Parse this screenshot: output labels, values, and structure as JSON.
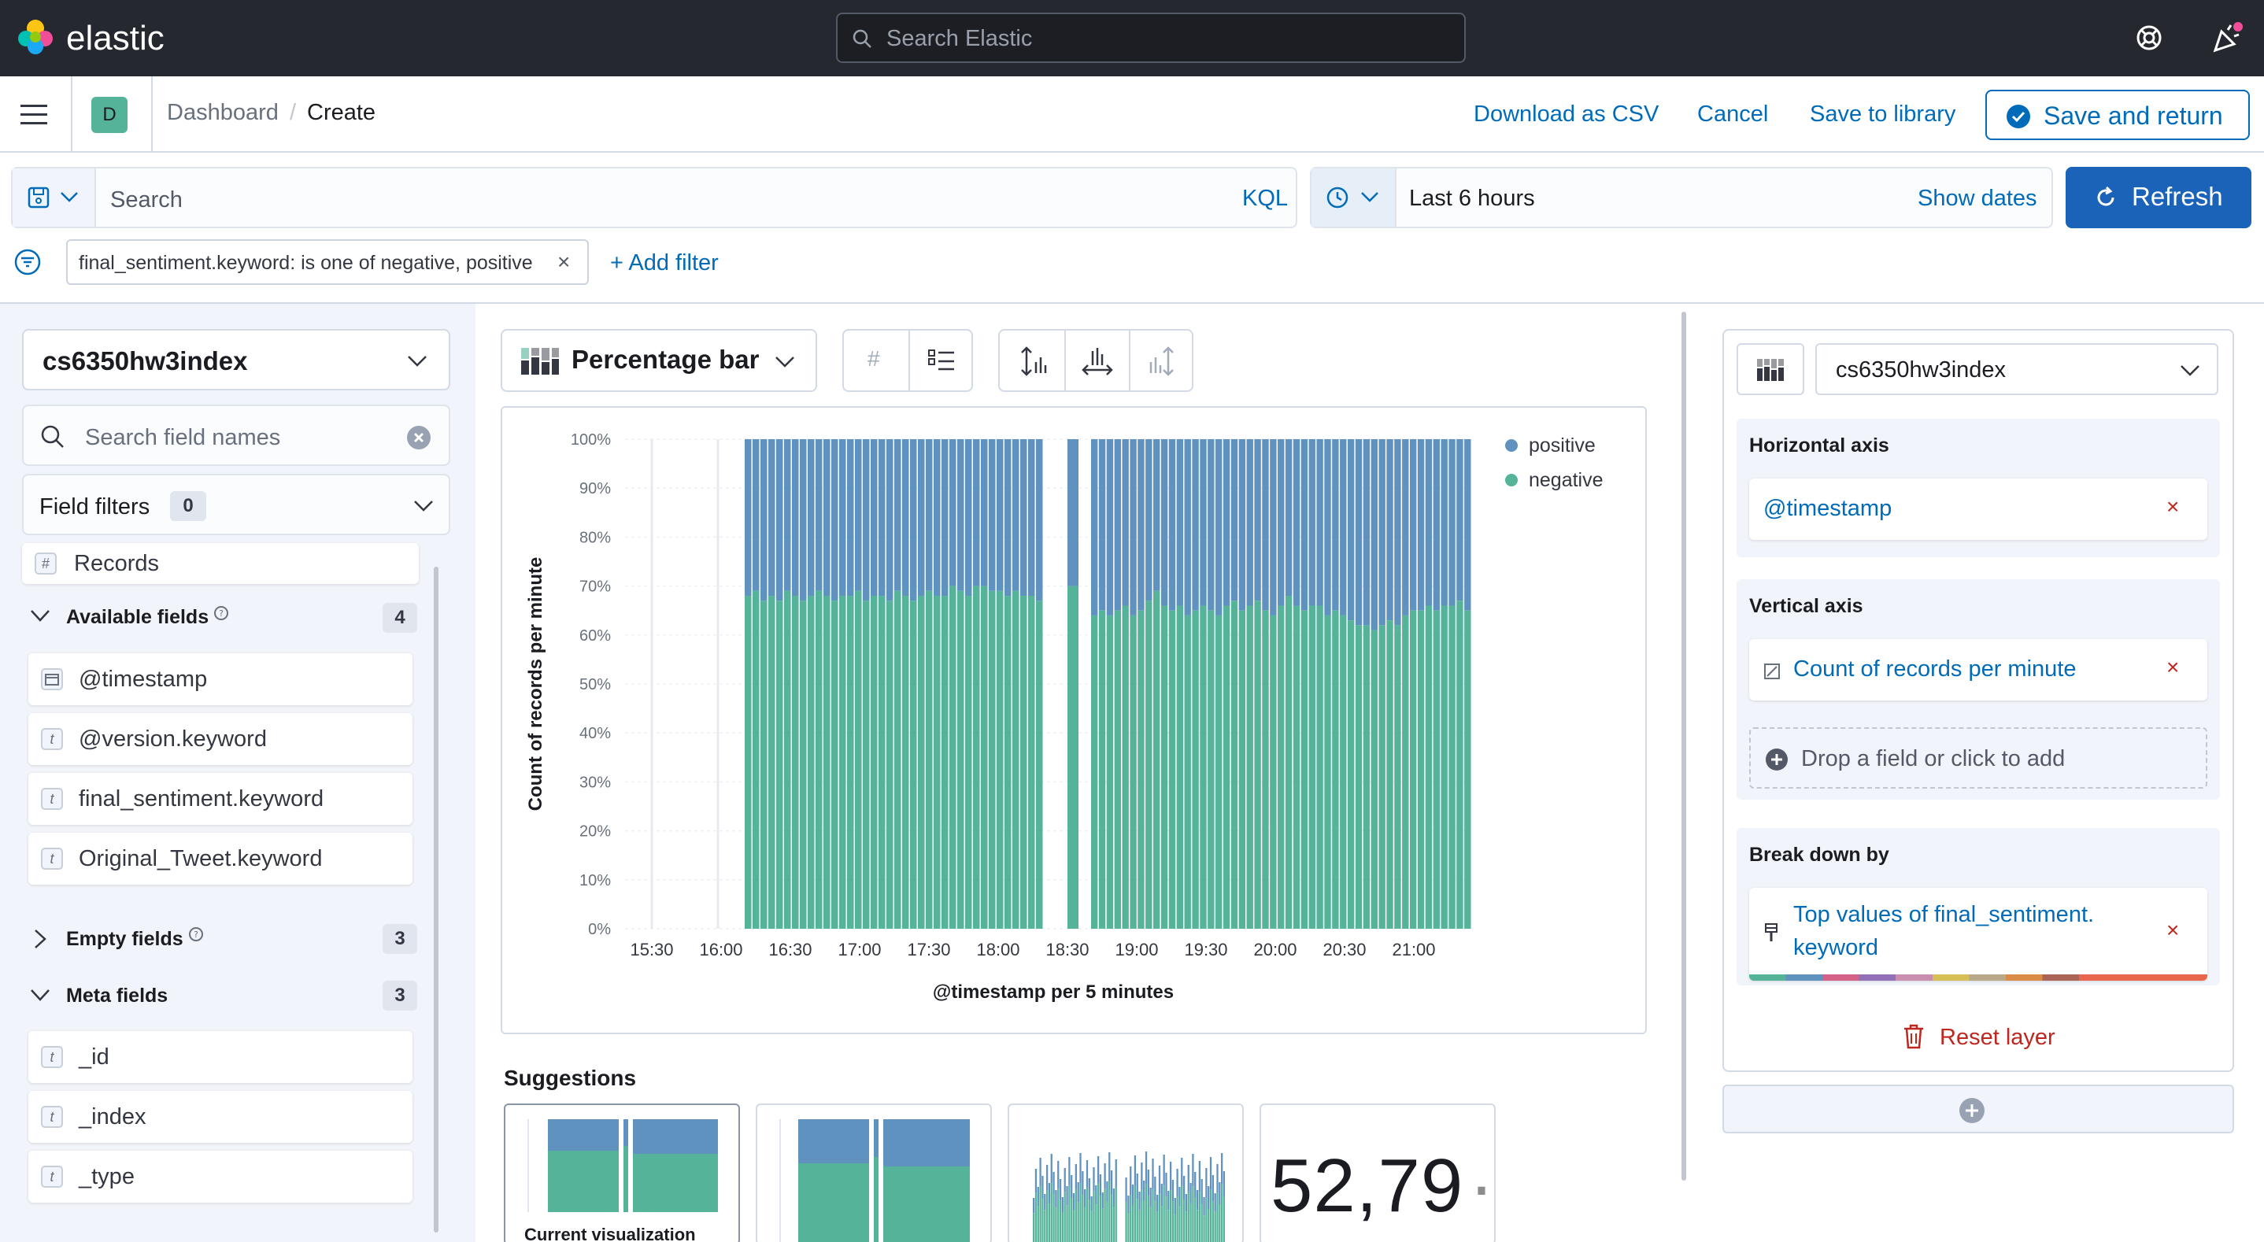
{
  "header": {
    "brand": "elastic",
    "search_placeholder": "Search Elastic"
  },
  "nav": {
    "space_initial": "D",
    "breadcrumb_root": "Dashboard",
    "breadcrumb_sep": "/",
    "breadcrumb_current": "Create",
    "download_csv": "Download as CSV",
    "cancel": "Cancel",
    "save_library": "Save to library",
    "save_return": "Save and return"
  },
  "query": {
    "search_placeholder": "Search",
    "language": "KQL",
    "time_range": "Last 6 hours",
    "show_dates": "Show dates",
    "refresh": "Refresh",
    "filter_pill": "final_sentiment.keyword: is one of negative, positive",
    "add_filter": "+ Add filter"
  },
  "left": {
    "index": "cs6350hw3index",
    "search_fields_placeholder": "Search field names",
    "field_filters": "Field filters",
    "field_filters_count": "0",
    "records": "Records",
    "available_title": "Available fields",
    "available_count": "4",
    "available": [
      {
        "type": "date",
        "name": "@timestamp"
      },
      {
        "type": "t",
        "name": "@version.keyword"
      },
      {
        "type": "t",
        "name": "final_sentiment.keyword"
      },
      {
        "type": "t",
        "name": "Original_Tweet.keyword"
      }
    ],
    "empty_title": "Empty fields",
    "empty_count": "3",
    "meta_title": "Meta fields",
    "meta_count": "3",
    "meta": [
      {
        "type": "t",
        "name": "_id"
      },
      {
        "type": "t",
        "name": "_index"
      },
      {
        "type": "t",
        "name": "_type"
      }
    ]
  },
  "toolbar": {
    "chart_type": "Percentage bar"
  },
  "chart_data": {
    "type": "bar",
    "stacked": "percentage",
    "ylabel": "Count of records per minute",
    "xlabel": "@timestamp per 5 minutes",
    "y_ticks": [
      "0%",
      "10%",
      "20%",
      "30%",
      "40%",
      "50%",
      "60%",
      "70%",
      "80%",
      "90%",
      "100%"
    ],
    "x_ticks": [
      "15:30",
      "16:00",
      "16:30",
      "17:00",
      "17:30",
      "18:00",
      "18:30",
      "19:00",
      "19:30",
      "20:00",
      "20:30",
      "21:00"
    ],
    "legend": "top-right",
    "series": [
      {
        "name": "positive",
        "color": "#6092c0"
      },
      {
        "name": "negative",
        "color": "#54b399"
      }
    ],
    "negative_share_segment1": [
      0.68,
      0.69,
      0.67,
      0.68,
      0.67,
      0.69,
      0.68,
      0.67,
      0.68,
      0.69,
      0.68,
      0.67,
      0.68,
      0.68,
      0.69,
      0.67,
      0.68,
      0.68,
      0.67,
      0.69,
      0.68,
      0.67,
      0.68,
      0.69,
      0.68,
      0.68,
      0.7,
      0.69,
      0.68,
      0.7,
      0.7,
      0.69,
      0.69,
      0.68,
      0.69,
      0.68,
      0.68,
      0.67
    ],
    "negative_share_segment2": [
      0.7
    ],
    "negative_share_segment3": [
      0.64,
      0.65,
      0.64,
      0.65,
      0.66,
      0.64,
      0.65,
      0.67,
      0.69,
      0.66,
      0.65,
      0.66,
      0.64,
      0.65,
      0.66,
      0.65,
      0.64,
      0.66,
      0.67,
      0.65,
      0.66,
      0.67,
      0.65,
      0.64,
      0.66,
      0.68,
      0.66,
      0.65,
      0.66,
      0.66,
      0.64,
      0.65,
      0.64,
      0.63,
      0.62,
      0.62,
      0.61,
      0.62,
      0.63,
      0.62,
      0.64,
      0.65,
      0.65,
      0.66,
      0.65,
      0.66,
      0.66,
      0.67,
      0.65
    ]
  },
  "suggestions": {
    "title": "Suggestions",
    "current": "Current visualization",
    "metric_value": "52,79"
  },
  "right": {
    "index": "cs6350hw3index",
    "horizontal_axis": "Horizontal axis",
    "horizontal_value": "@timestamp",
    "vertical_axis": "Vertical axis",
    "vertical_value": "Count of records per minute",
    "drop_field": "Drop a field or click to add",
    "breakdown": "Break down by",
    "breakdown_value_line1": "Top values of final_sentiment.",
    "breakdown_value_line2": "keyword",
    "reset_layer": "Reset layer"
  }
}
